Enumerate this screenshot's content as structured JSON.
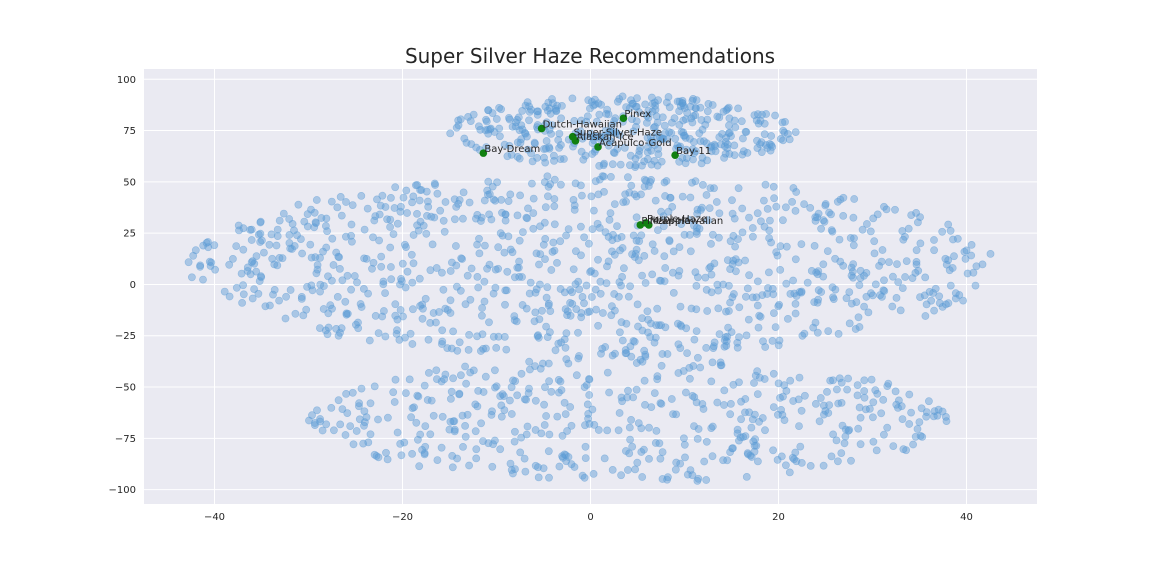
{
  "chart_data": {
    "type": "scatter",
    "title": "Super Silver Haze Recommendations",
    "xlabel": "",
    "ylabel": "",
    "xlim": [
      -47.5,
      47.5
    ],
    "ylim": [
      -107,
      105
    ],
    "xticks": [
      -40,
      -20,
      0,
      20,
      40
    ],
    "yticks": [
      -100,
      -75,
      -50,
      -25,
      0,
      25,
      50,
      75,
      100
    ],
    "grid": true,
    "colors": {
      "background": "#eaeaf2",
      "points": "#5b9bd5",
      "highlight": "#118011"
    },
    "background_points": {
      "note_count": 1800,
      "clusters": [
        {
          "x_range": [
            -15,
            22
          ],
          "y_range": [
            57,
            92
          ]
        },
        {
          "x_range": [
            -43,
            43
          ],
          "y_range": [
            -35,
            53
          ]
        },
        {
          "x_range": [
            -30,
            38
          ],
          "y_range": [
            -97,
            -35
          ]
        }
      ]
    },
    "highlighted": [
      {
        "label": "Dutch-Hawaiian",
        "x": -5.2,
        "y": 76
      },
      {
        "label": "Pinex",
        "x": 3.5,
        "y": 81
      },
      {
        "label": "Super-Silver-Haze",
        "x": -1.9,
        "y": 72
      },
      {
        "label": "Alaskan-Ice",
        "x": -1.6,
        "y": 70
      },
      {
        "label": "Acapulco-Gold",
        "x": 0.8,
        "y": 67
      },
      {
        "label": "Bay-Dream",
        "x": -11.4,
        "y": 64
      },
      {
        "label": "Bay-11",
        "x": 9.0,
        "y": 63
      },
      {
        "label": "Pineapple",
        "x": 5.3,
        "y": 29
      },
      {
        "label": "Purple-Haze",
        "x": 5.9,
        "y": 30
      },
      {
        "label": "Maui-Hawaiian",
        "x": 6.2,
        "y": 29
      }
    ]
  }
}
